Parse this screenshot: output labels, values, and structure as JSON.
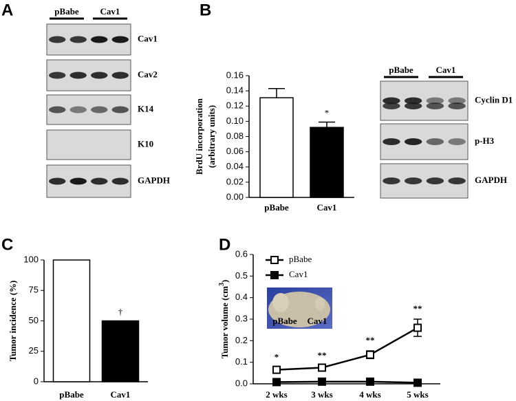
{
  "panel_labels": [
    "A",
    "B",
    "C",
    "D"
  ],
  "blot_a": {
    "groups": [
      "pBabe",
      "Cav1"
    ],
    "rows": [
      "Cav1",
      "Cav2",
      "K14",
      "K10",
      "GAPDH"
    ]
  },
  "blot_b": {
    "groups": [
      "pBabe",
      "Cav1"
    ],
    "rows": [
      "Cyclin D1",
      "p-H3",
      "GAPDH"
    ]
  },
  "chart_data": [
    {
      "type": "bar",
      "y_label": [
        "BrdU incorporation",
        "(arbitrary units)"
      ],
      "categories": [
        "pBabe",
        "Cav1"
      ],
      "values": [
        0.131,
        0.092
      ],
      "errors": [
        0.012,
        0.007
      ],
      "colors": [
        "#ffffff",
        "#000000"
      ],
      "significance": [
        null,
        "*"
      ],
      "ylim": [
        0,
        0.16
      ],
      "yticks": [
        {
          "value": 0,
          "label": "0.00"
        },
        {
          "value": 0.02,
          "label": "0.02"
        },
        {
          "value": 0.04,
          "label": "0.04"
        },
        {
          "value": 0.06,
          "label": "0.06"
        },
        {
          "value": 0.08,
          "label": "0.08"
        },
        {
          "value": 0.1,
          "label": "0.10"
        },
        {
          "value": 0.12,
          "label": "0.12"
        },
        {
          "value": 0.14,
          "label": "0.14"
        },
        {
          "value": 0.16,
          "label": "0.16"
        }
      ]
    },
    {
      "type": "bar",
      "y_label": [
        "Tumor incidence (%)"
      ],
      "categories": [
        "pBabe",
        "Cav1"
      ],
      "values": [
        100,
        50
      ],
      "colors": [
        "#ffffff",
        "#000000"
      ],
      "significance": [
        null,
        "†"
      ],
      "ylim": [
        0,
        100
      ],
      "yticks": [
        0,
        25,
        50,
        75,
        100
      ]
    },
    {
      "type": "line",
      "y_label": [
        "Tumor volume (cm",
        "3",
        ")"
      ],
      "categories": [
        "2 wks",
        "3 wks",
        "4 wks",
        "5 wks"
      ],
      "series": [
        {
          "name": "pBabe",
          "color": "#000000",
          "marker": "open-square",
          "values": [
            0.065,
            0.075,
            0.135,
            0.26
          ],
          "errors": [
            0.01,
            0.008,
            0.018,
            0.04
          ]
        },
        {
          "name": "Cav1",
          "color": "#000000",
          "marker": "filled-square",
          "values": [
            0.008,
            0.01,
            0.01,
            0.005
          ]
        }
      ],
      "significance": [
        "*",
        "**",
        "**",
        "**"
      ],
      "inset_labels": [
        "pBabe",
        "Cav1"
      ],
      "ylim": [
        0,
        0.6
      ],
      "yticks": [
        {
          "value": 0,
          "label": "0.0"
        },
        {
          "value": 0.1,
          "label": "0.1"
        },
        {
          "value": 0.2,
          "label": "0.2"
        },
        {
          "value": 0.3,
          "label": "0.3"
        },
        {
          "value": 0.4,
          "label": "0.4"
        },
        {
          "value": 0.5,
          "label": "0.5"
        },
        {
          "value": 0.6,
          "label": "0.6"
        }
      ],
      "legend": "upper left"
    }
  ]
}
